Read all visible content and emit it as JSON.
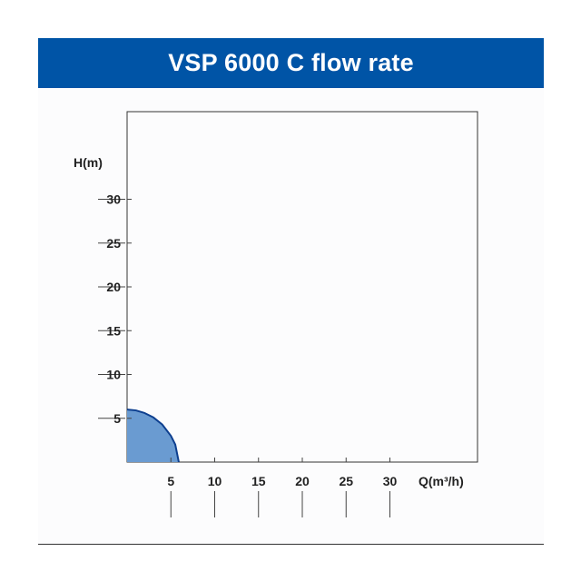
{
  "title": "VSP 6000 C flow rate",
  "chart_data": {
    "type": "area",
    "title": "VSP 6000 C flow rate",
    "xlabel": "Q(m³/h)",
    "ylabel": "H(m)",
    "x_ticks": [
      5,
      10,
      15,
      20,
      25,
      30
    ],
    "y_ticks": [
      5,
      10,
      15,
      20,
      25,
      30
    ],
    "xlim": [
      0,
      40
    ],
    "ylim": [
      0,
      40
    ],
    "grid": false,
    "series": [
      {
        "x": [
          0,
          1,
          2,
          3,
          4,
          5,
          5.5,
          5.9
        ],
        "y": [
          6,
          5.9,
          5.6,
          5.1,
          4.3,
          3.0,
          2.0,
          0
        ],
        "fill": "#6a9bd1",
        "stroke": "#0d3f8f"
      }
    ]
  },
  "colors": {
    "banner": "#0054a6",
    "fill": "#6a9bd1",
    "stroke": "#0d3f8f"
  }
}
